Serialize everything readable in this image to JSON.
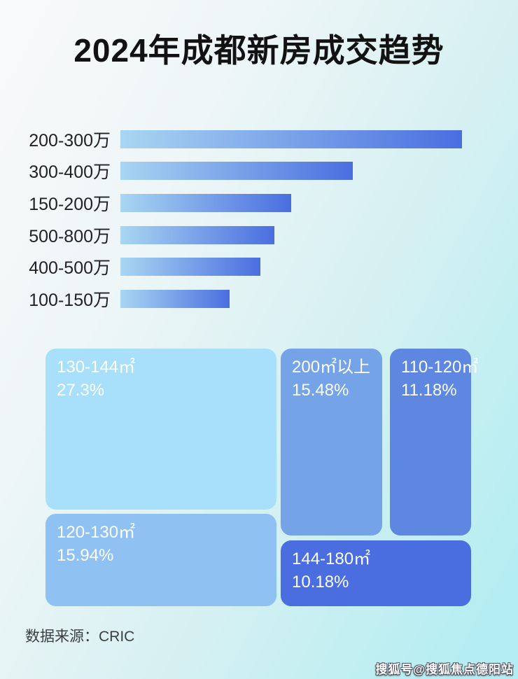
{
  "page": {
    "title": "2024年成都新房成交趋势",
    "source_label": "数据来源：CRIC",
    "watermark": "搜狐号@搜狐焦点德阳站"
  },
  "colors": {
    "bg-start": "#f8f9fa",
    "bg-end": "#b5eef2",
    "title": "#121212",
    "label": "#222222",
    "bar-start": "#a9d6f2",
    "bar-end": "#4a6ee0",
    "tile-text": "#ffffff"
  },
  "chart_data": [
    {
      "type": "bar",
      "orientation": "horizontal",
      "title": "2024年成都新房成交趋势",
      "categories": [
        "200-300万",
        "300-400万",
        "150-200万",
        "500-800万",
        "400-500万",
        "100-150万"
      ],
      "values": [
        100,
        68,
        50,
        45,
        41,
        32
      ],
      "value_note": "no numeric axis shown; values are bar lengths as % of longest bar",
      "xlabel": "",
      "ylabel": "",
      "grid": false,
      "legend": false,
      "bar_gradient": [
        "#a9d6f2",
        "#4a6ee0"
      ]
    },
    {
      "type": "treemap",
      "tiles": [
        {
          "label": "130-144㎡",
          "value": "27.3%",
          "color": "#a8e0fb"
        },
        {
          "label": "120-130㎡",
          "value": "15.94%",
          "color": "#8fc1f2"
        },
        {
          "label": "200㎡以上",
          "value": "15.48%",
          "color": "#74a3e8"
        },
        {
          "label": "110-120㎡",
          "value": "11.18%",
          "color": "#5d87e0"
        },
        {
          "label": "144-180㎡",
          "value": "10.18%",
          "color": "#4a6ee0"
        }
      ],
      "legend": false
    }
  ]
}
